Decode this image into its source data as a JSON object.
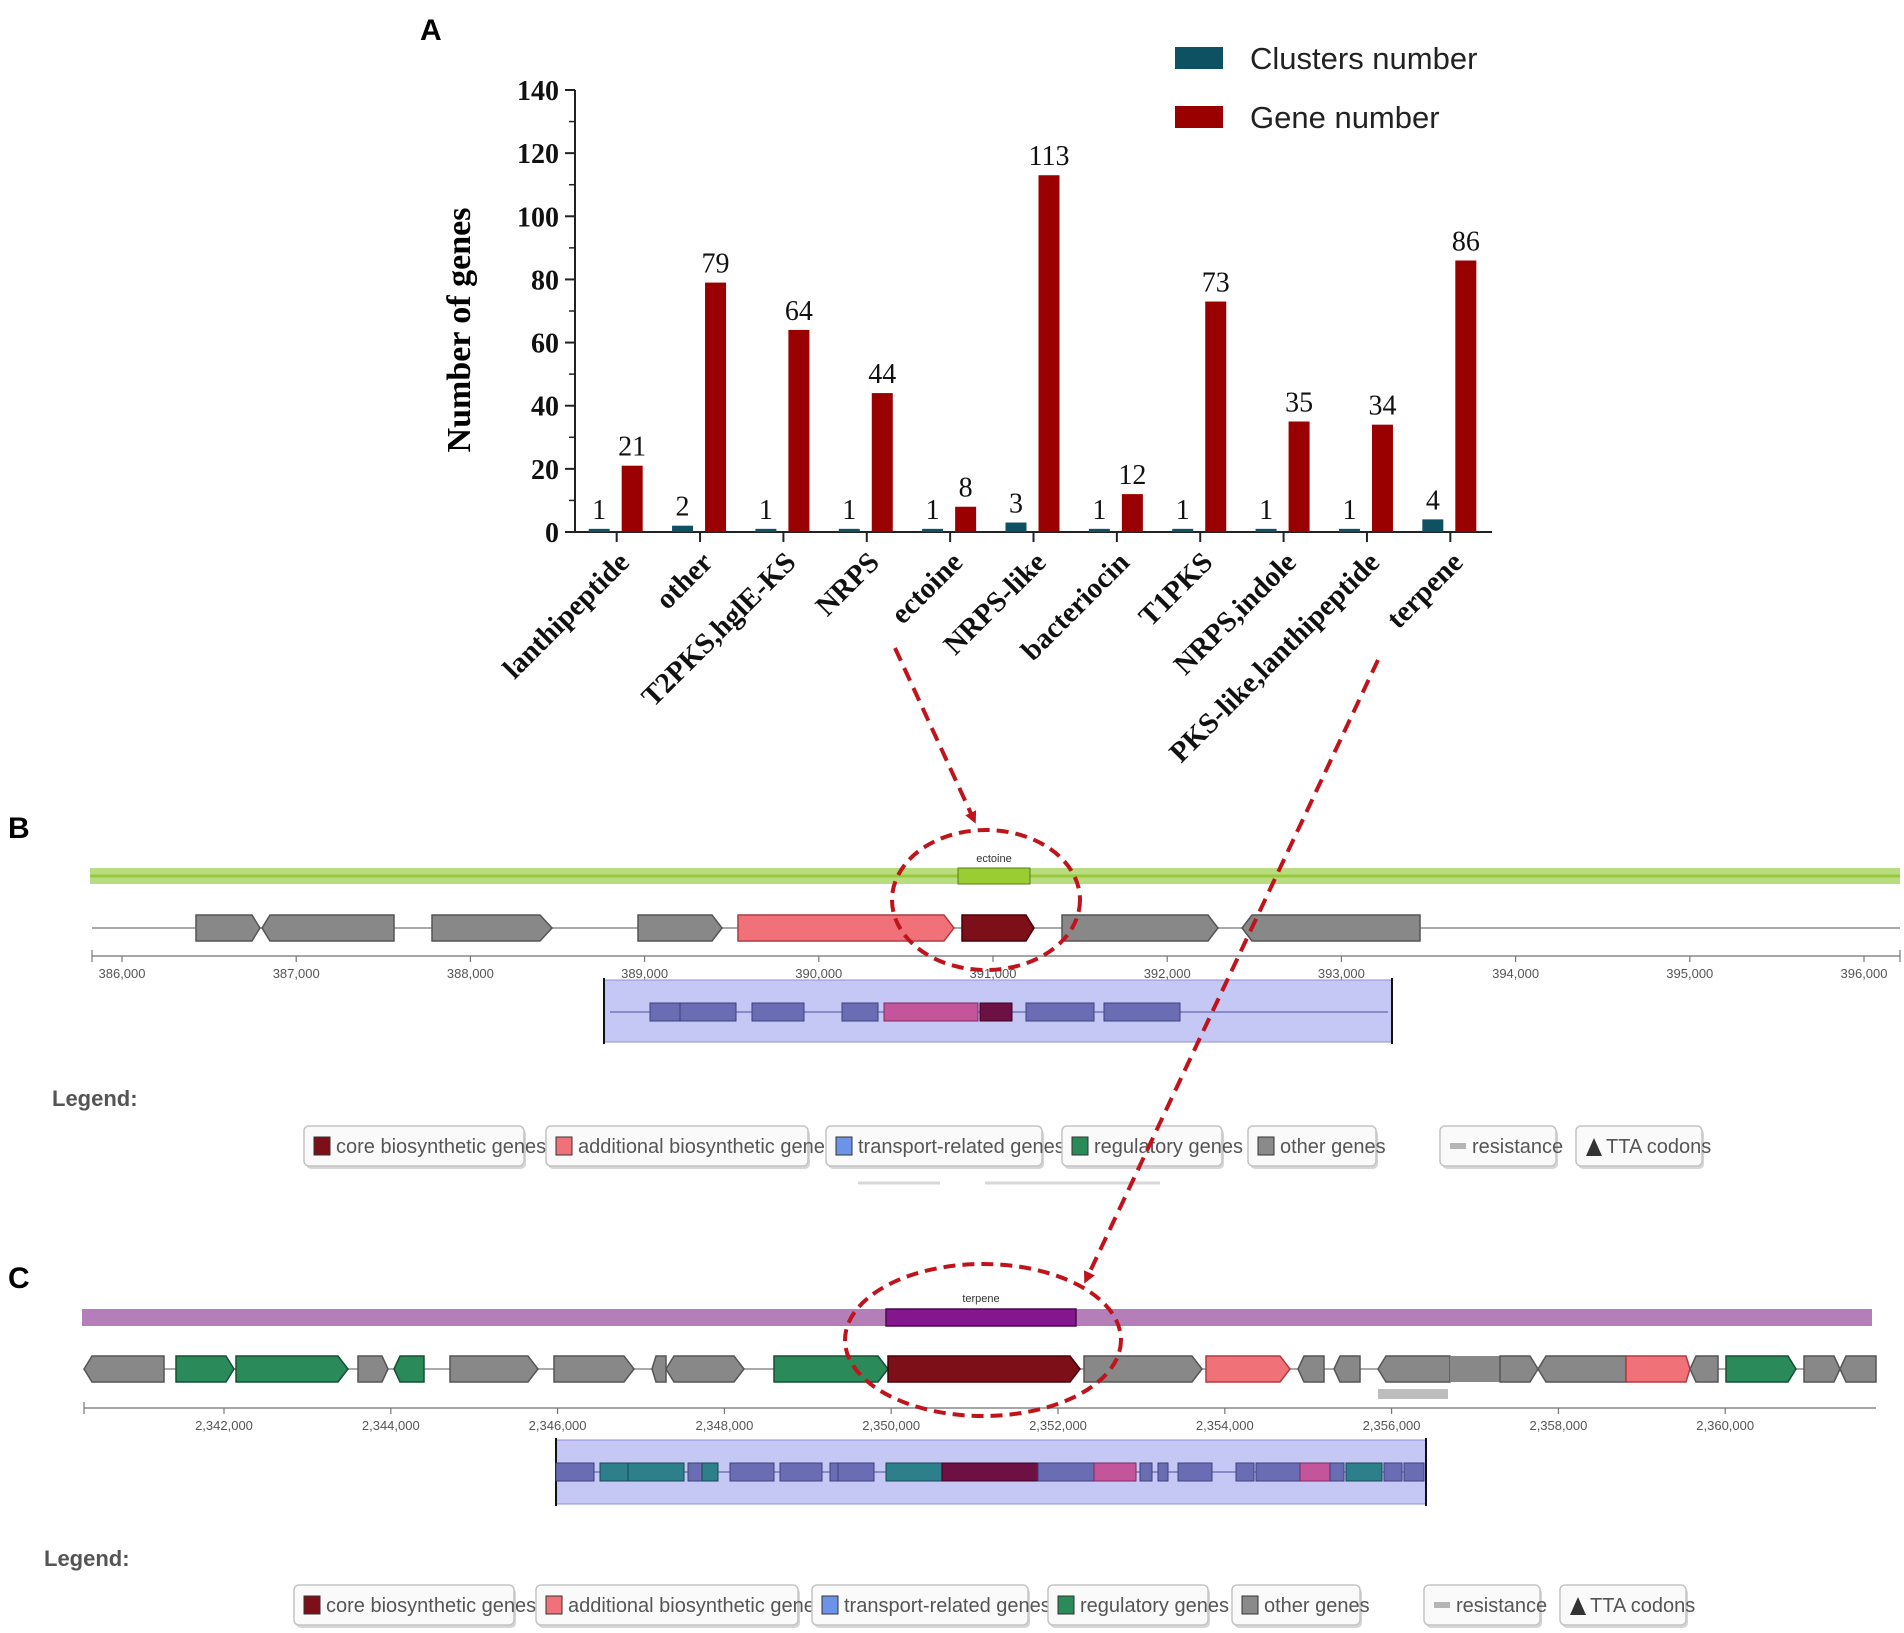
{
  "panels": {
    "a": "A",
    "b": "B",
    "c": "C"
  },
  "colors": {
    "clusters": "#0d5163",
    "genes": "#9b0000",
    "core": "#7d0f18",
    "additional": "#f07178",
    "transport": "#6b94e8",
    "regulatory": "#2a8a5a",
    "other": "#8a8a8a",
    "resistance": "#b5b5b5",
    "ectoine_band": "#9ac83c",
    "terpene_band": "#a35ea8",
    "ectoine_box": "#9acd32",
    "terpene_box": "#85178c",
    "arrow": "#c0141c"
  },
  "chart_data": {
    "type": "bar",
    "categories": [
      "lanthipeptide",
      "other",
      "T2PKS,hglE-KS",
      "NRPS",
      "ectoine",
      "NRPS-like",
      "bacteriocin",
      "T1PKS",
      "NRPS,indole",
      "PKS-like,lanthipeptide",
      "terpene"
    ],
    "series": [
      {
        "name": "Clusters number",
        "values": [
          1,
          2,
          1,
          1,
          1,
          3,
          1,
          1,
          1,
          1,
          4
        ]
      },
      {
        "name": "Gene number",
        "values": [
          21,
          79,
          64,
          44,
          8,
          113,
          12,
          73,
          35,
          34,
          86
        ]
      }
    ],
    "ylabel": "Number of genes",
    "ylim": [
      0,
      140
    ],
    "yticks": [
      0,
      20,
      40,
      60,
      80,
      100,
      120,
      140
    ],
    "legend_position": "top-right",
    "grid": false
  },
  "panel_b": {
    "region_label": "ectoine",
    "axis_ticks": [
      "386,000",
      "387,000",
      "388,000",
      "389,000",
      "390,000",
      "391,000",
      "392,000",
      "393,000",
      "394,000",
      "395,000",
      "396,000"
    ],
    "legend_title": "Legend:",
    "legend": [
      "core biosynthetic genes",
      "additional biosynthetic genes",
      "transport-related genes",
      "regulatory genes",
      "other genes",
      "resistance",
      "TTA codons"
    ]
  },
  "panel_c": {
    "region_label": "terpene",
    "axis_ticks": [
      "2,342,000",
      "2,344,000",
      "2,346,000",
      "2,348,000",
      "2,350,000",
      "2,352,000",
      "2,354,000",
      "2,356,000",
      "2,358,000",
      "2,360,000"
    ],
    "legend_title": "Legend:",
    "legend": [
      "core biosynthetic genes",
      "additional biosynthetic genes",
      "transport-related genes",
      "regulatory genes",
      "other genes",
      "resistance",
      "TTA codons"
    ]
  }
}
